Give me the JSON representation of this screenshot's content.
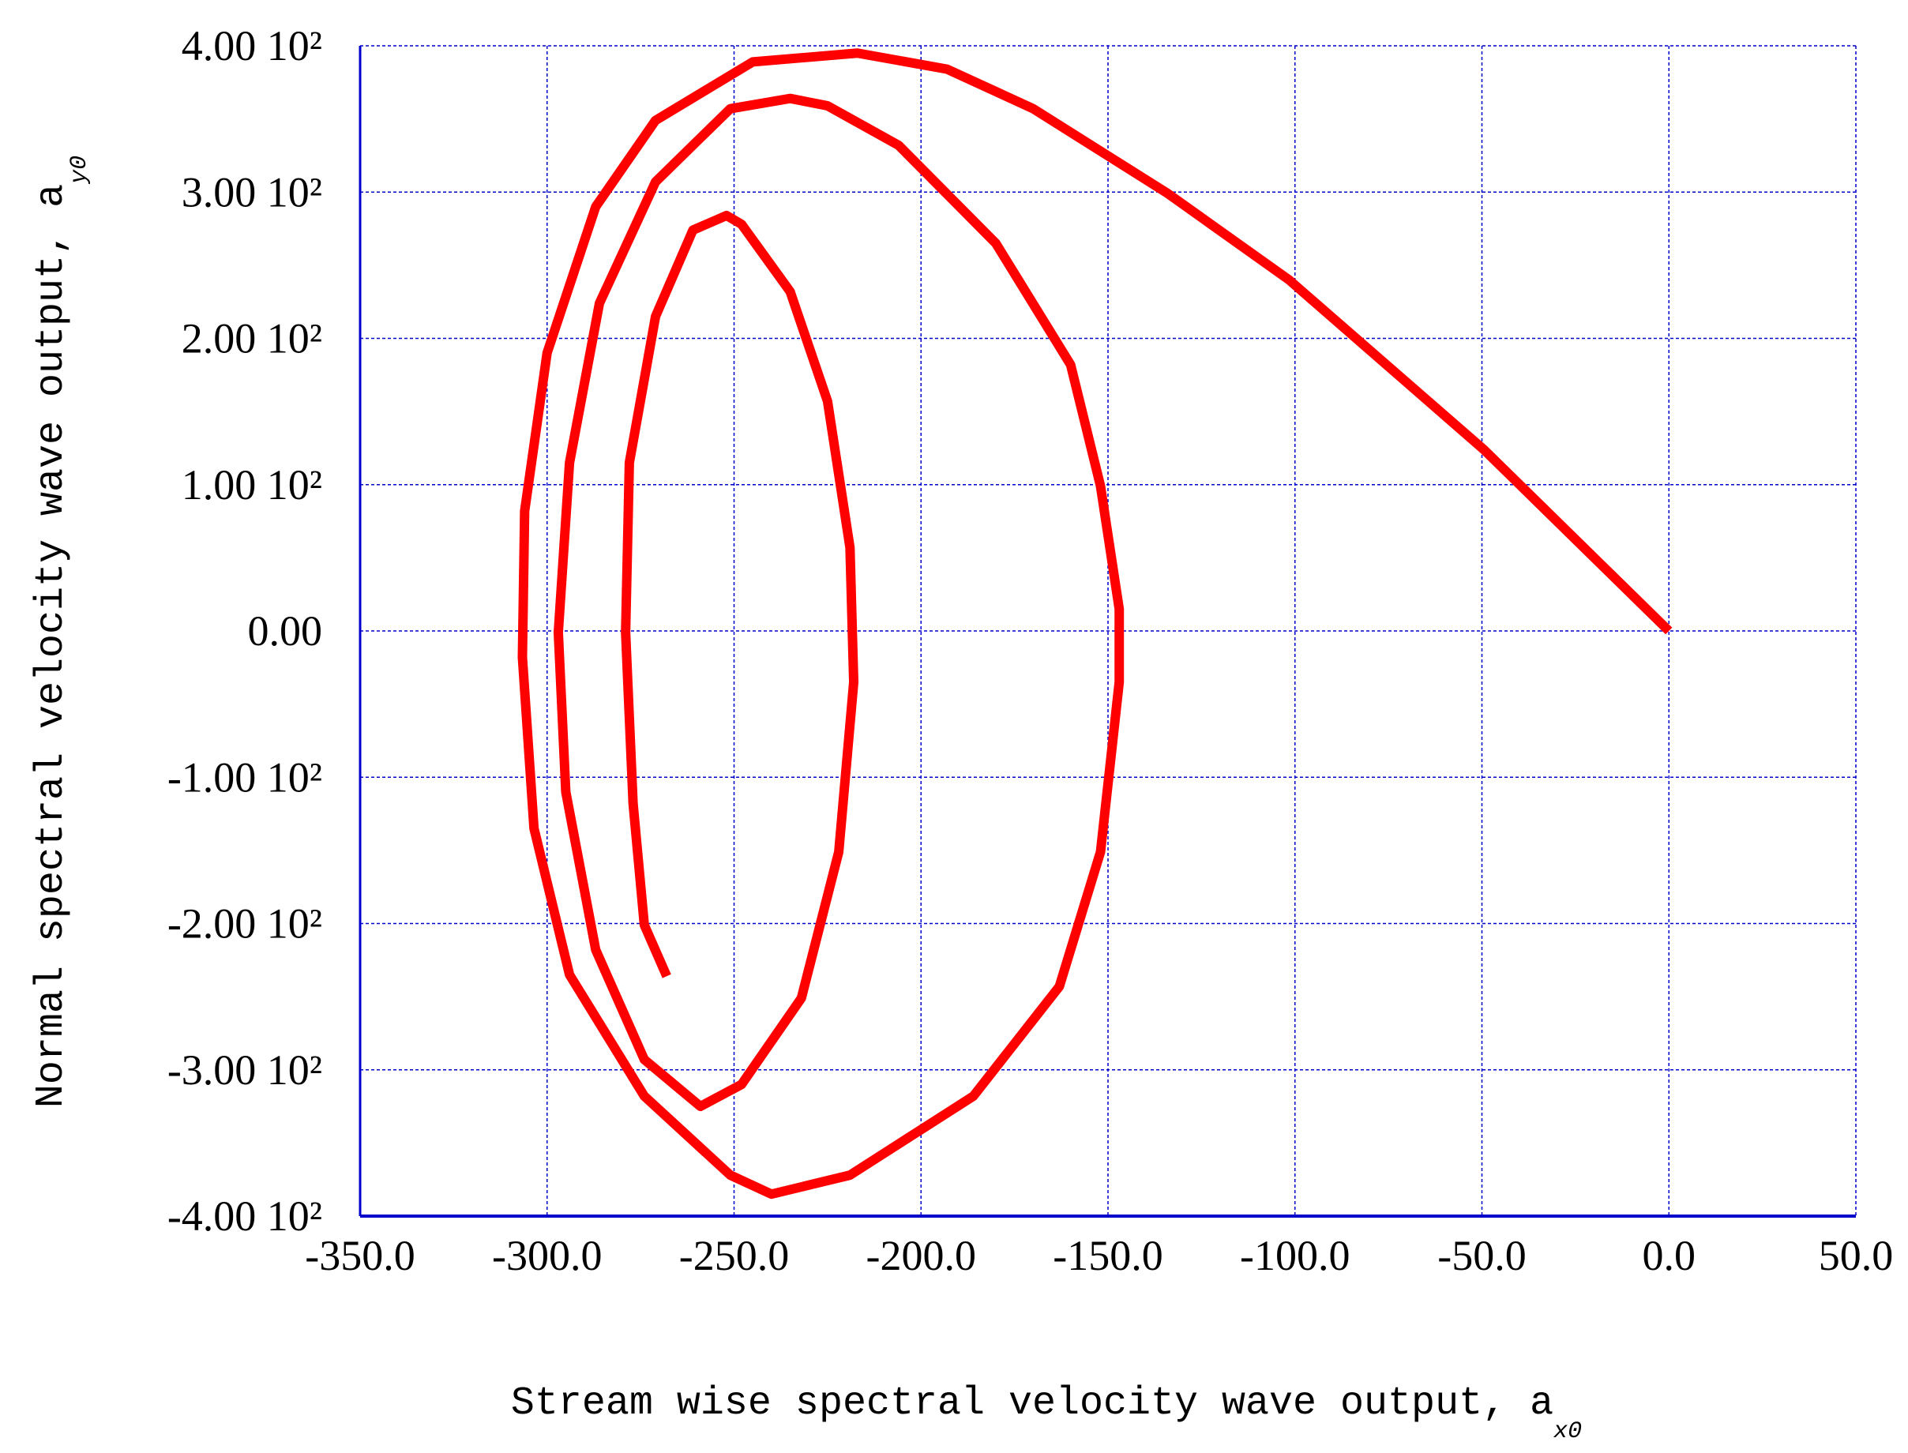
{
  "chart_data": {
    "type": "line",
    "x_label": "Stream wise spectral velocity wave output, a",
    "x_label_sub": "x0",
    "y_label": "Normal spectral velocity wave output, a",
    "y_label_sub": "y0",
    "x": [
      0,
      -49.5,
      -101.6,
      -134,
      -170,
      -193,
      -217,
      -245,
      -271,
      -287,
      -300,
      -306,
      -306.6,
      -303.5,
      -294,
      -274,
      -251,
      -240,
      -219,
      -186,
      -163,
      -152,
      -147,
      -147,
      -152,
      -160,
      -180,
      -206,
      -225,
      -235,
      -251,
      -271,
      -286,
      -294,
      -297,
      -295,
      -287,
      -274,
      -259,
      -248,
      -232,
      -222,
      -218,
      -219,
      -225,
      -235,
      -248,
      -252,
      -261,
      -271,
      -278,
      -279,
      -277,
      -274,
      -268
    ],
    "values": [
      0,
      124,
      240,
      299,
      357,
      384,
      395,
      389,
      349,
      290,
      190,
      82,
      -18,
      -135,
      -235,
      -318,
      -372,
      -385,
      -372,
      -318,
      -243,
      -151,
      -35,
      15,
      99,
      182,
      265,
      332,
      359,
      364,
      357,
      307,
      224,
      115,
      -1,
      -110,
      -218,
      -293,
      -325,
      -310,
      -251,
      -151,
      -35,
      57,
      157,
      232,
      278,
      284,
      274,
      215,
      115,
      -1,
      -118,
      -201,
      -236
    ],
    "color": "#ff0000",
    "xlim": [
      -350,
      50
    ],
    "ylim": [
      -400,
      400
    ],
    "xticks": [
      {
        "value": -350,
        "label": "-350.0"
      },
      {
        "value": -300,
        "label": "-300.0"
      },
      {
        "value": -250,
        "label": "-250.0"
      },
      {
        "value": -200,
        "label": "-200.0"
      },
      {
        "value": -150,
        "label": "-150.0"
      },
      {
        "value": -100,
        "label": "-100.0"
      },
      {
        "value": -50,
        "label": "-50.0"
      },
      {
        "value": 0,
        "label": "0.0"
      },
      {
        "value": 50,
        "label": "50.0"
      }
    ],
    "yticks": [
      {
        "value": 400,
        "label": "4.00 10²"
      },
      {
        "value": 300,
        "label": "3.00 10²"
      },
      {
        "value": 200,
        "label": "2.00 10²"
      },
      {
        "value": 100,
        "label": "1.00 10²"
      },
      {
        "value": 0,
        "label": "0.00"
      },
      {
        "value": -100,
        "label": "-1.00 10²"
      },
      {
        "value": -200,
        "label": "-2.00 10²"
      },
      {
        "value": -300,
        "label": "-3.00 10²"
      },
      {
        "value": -400,
        "label": "-4.00 10²"
      }
    ],
    "grid": true
  }
}
